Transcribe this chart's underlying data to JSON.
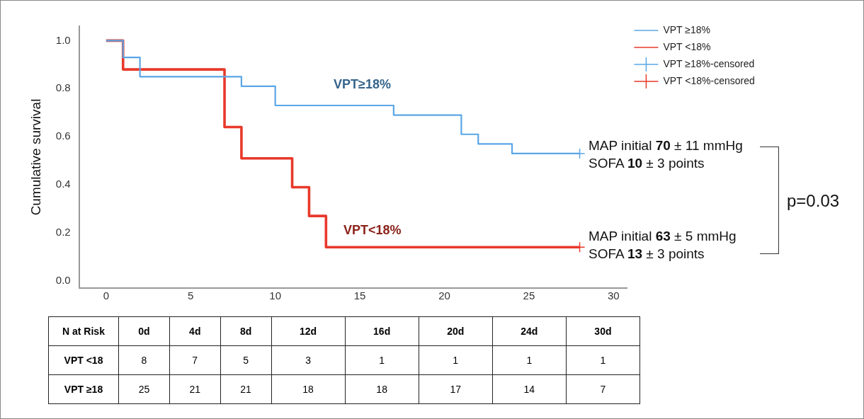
{
  "chart_data": [
    {
      "type": "step",
      "ylabel": "Cumulative survival",
      "xlim": [
        -1.6,
        30.8
      ],
      "xticks": [
        0,
        5,
        10,
        15,
        20,
        25,
        30
      ],
      "ylim": [
        -0.03,
        1.06
      ],
      "yticks": [
        {
          "value": 0,
          "label": "0.0"
        },
        0.2,
        0.4,
        0.6,
        0.8,
        {
          "value": 1,
          "label": "1.0"
        }
      ],
      "grid": false,
      "legend": "top right",
      "line_style": "solid",
      "series": [
        {
          "name": "VPT ≥18%",
          "color": "#5aa6e6",
          "x": [
            0,
            1,
            2,
            8,
            10,
            17,
            21,
            22,
            24,
            28
          ],
          "values": [
            1.0,
            0.93,
            0.85,
            0.81,
            0.73,
            0.69,
            0.61,
            0.57,
            0.53,
            0.53
          ]
        },
        {
          "name": "VPT <18%",
          "color": "#e8392b",
          "x": [
            0,
            1,
            7,
            8,
            11,
            12,
            13,
            28
          ],
          "values": [
            1.0,
            0.88,
            0.64,
            0.51,
            0.39,
            0.27,
            0.14,
            0.14
          ]
        },
        {
          "name": "VPT ≥18%-censored",
          "type": "scatter",
          "color": "#5aa6e6",
          "marker": "cross",
          "x": [
            28
          ],
          "values": [
            0.53
          ]
        },
        {
          "name": "VPT <18%-censored",
          "type": "scatter",
          "color": "#e8392b",
          "marker": "cross",
          "x": [
            28
          ],
          "values": [
            0.14
          ]
        }
      ],
      "annotations": [
        "VPT≥18%",
        "VPT<18%",
        "MAP initial 70 ± 11 mmHg",
        "SOFA 10 ± 3 points",
        "MAP initial 63 ± 5 mmHg",
        "SOFA 13 ± 3 points",
        "p=0.03"
      ]
    },
    {
      "type": "heatmap",
      "title": "N at Risk",
      "categories": [
        "0d",
        "4d",
        "8d",
        "12d",
        "16d",
        "20d",
        "24d",
        "30d"
      ],
      "y_categories": [
        "VPT <18",
        "VPT ≥18"
      ],
      "data_labels": true,
      "cells": [
        [
          8,
          7,
          5,
          3,
          1,
          1,
          1,
          1
        ],
        [
          25,
          21,
          21,
          18,
          18,
          17,
          14,
          7
        ]
      ]
    }
  ]
}
